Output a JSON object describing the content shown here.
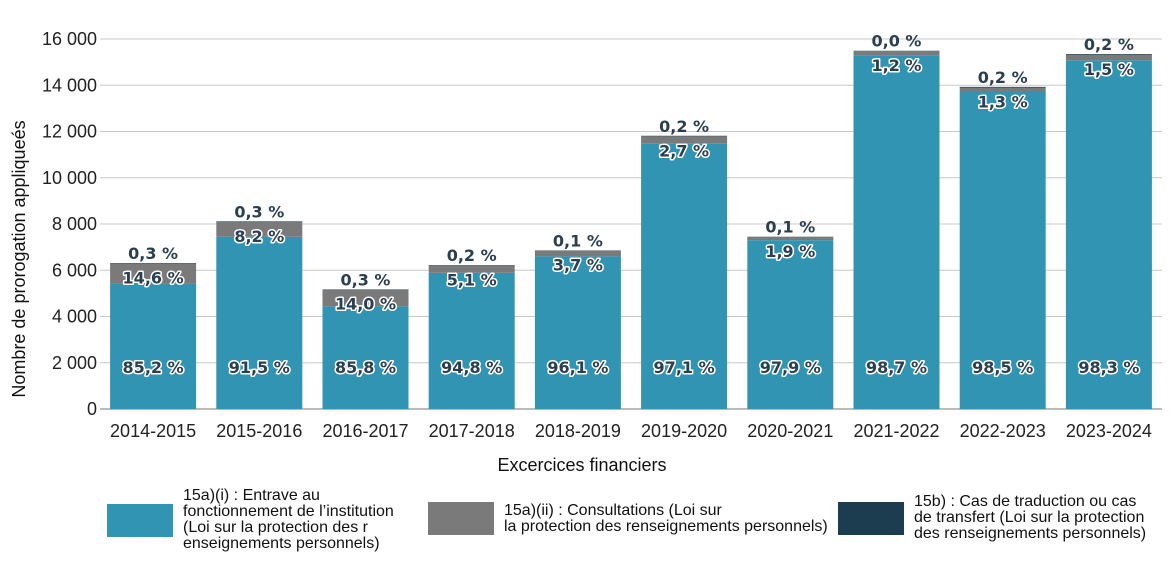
{
  "chart_data": {
    "type": "bar",
    "stacked": true,
    "xlabel": "Excercices financiers",
    "ylabel": "Nombre de prorogation appliqueés",
    "ylim": [
      0,
      16000
    ],
    "yticks": [
      {
        "value": 0,
        "label": "0"
      },
      {
        "value": 2000,
        "label": "2 000"
      },
      {
        "value": 4000,
        "label": "4 000"
      },
      {
        "value": 6000,
        "label": "6 000"
      },
      {
        "value": 8000,
        "label": "8 000"
      },
      {
        "value": 10000,
        "label": "10 000"
      },
      {
        "value": 12000,
        "label": "12 000"
      },
      {
        "value": 14000,
        "label": "14 000"
      },
      {
        "value": 16000,
        "label": "16 000"
      }
    ],
    "categories": [
      "2014-2015",
      "2015-2016",
      "2016-2017",
      "2017-2018",
      "2018-2019",
      "2019-2020",
      "2020-2021",
      "2021-2022",
      "2022-2023",
      "2023-2024"
    ],
    "series": [
      {
        "name": "15a)(i) : Entrave au fonctionnement de l’institution (Loi sur la protection des r enseignements personnels)",
        "color": "#3194b3",
        "values": [
          5410,
          7450,
          4440,
          5890,
          6600,
          11470,
          7300,
          15300,
          13730,
          15080
        ],
        "labels": [
          "85,2 %",
          "91,5 %",
          "85,8 %",
          "94,8 %",
          "96,1 %",
          "97,1 %",
          "97,9 %",
          "98,7 %",
          "98,5 %",
          "98,3 %"
        ]
      },
      {
        "name": "15a)(ii) : Consultations (Loi sur la protection des renseignements personnels)",
        "color": "#7a7a7a",
        "values": [
          880,
          640,
          720,
          320,
          250,
          320,
          140,
          190,
          170,
          230
        ],
        "labels": [
          "14,6 %",
          "8,2 %",
          "14,0 %",
          "5,1 %",
          "3,7 %",
          "2,7 %",
          "1,9 %",
          "1,2 %",
          "1,3 %",
          "1,5 %"
        ]
      },
      {
        "name": "15b) : Cas de traduction ou cas de transfert (Loi sur la protection des renseignements personnels)",
        "color": "#1b3d4f",
        "values": [
          20,
          25,
          15,
          15,
          10,
          25,
          10,
          5,
          30,
          35
        ],
        "labels": [
          "0,3 %",
          "0,3 %",
          "0,3 %",
          "0,2 %",
          "0,1 %",
          "0,2 %",
          "0,1 %",
          "0,0 %",
          "0,2 %",
          "0,2 %"
        ]
      }
    ]
  },
  "legend": [
    {
      "color": "#3194b3",
      "text": "15a)(i) : Entrave au\nfonctionnement de l’institution\n(Loi sur la protection des r\nenseignements personnels)"
    },
    {
      "color": "#7a7a7a",
      "text": "15a)(ii) : Consultations (Loi sur\nla protection des renseignements personnels)"
    },
    {
      "color": "#1b3d4f",
      "text": "15b) : Cas de traduction ou cas\nde transfert (Loi sur la protection\ndes renseignements personnels)"
    }
  ]
}
